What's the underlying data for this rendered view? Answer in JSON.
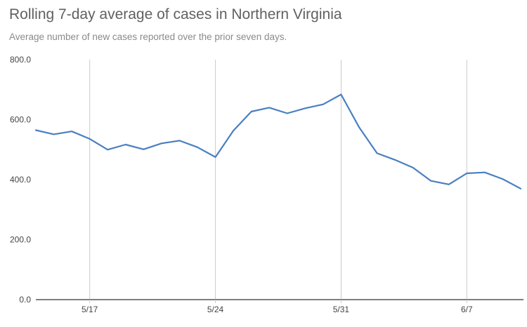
{
  "chart_data": {
    "type": "line",
    "title": "Rolling 7-day average of cases in Northern Virginia",
    "subtitle": "Average number of new cases reported over the prior seven days.",
    "xlabel": "",
    "ylabel": "",
    "ylim": [
      0,
      800
    ],
    "y_ticks": [
      "0.0",
      "200.0",
      "400.0",
      "600.0",
      "800.0"
    ],
    "y_tick_values": [
      0,
      200,
      400,
      600,
      800
    ],
    "x_ticks": [
      "5/17",
      "5/24",
      "5/31",
      "6/7"
    ],
    "x_tick_index": [
      3,
      10,
      17,
      24
    ],
    "grid": {
      "vertical": true,
      "horizontal": false
    },
    "colors": {
      "line": "#4a7fc1",
      "grid": "#cccccc",
      "axis": "#333333"
    },
    "x": [
      "5/14",
      "5/15",
      "5/16",
      "5/17",
      "5/18",
      "5/19",
      "5/20",
      "5/21",
      "5/22",
      "5/23",
      "5/24",
      "5/25",
      "5/26",
      "5/27",
      "5/28",
      "5/29",
      "5/30",
      "5/31",
      "6/1",
      "6/2",
      "6/3",
      "6/4",
      "6/5",
      "6/6",
      "6/7",
      "6/8",
      "6/9",
      "6/10"
    ],
    "series": [
      {
        "values": [
          565,
          551,
          561,
          536,
          500,
          517,
          501,
          521,
          530,
          508,
          475,
          563,
          627,
          640,
          621,
          638,
          651,
          684,
          575,
          488,
          466,
          440,
          396,
          384,
          421,
          424,
          402,
          370
        ]
      }
    ]
  }
}
